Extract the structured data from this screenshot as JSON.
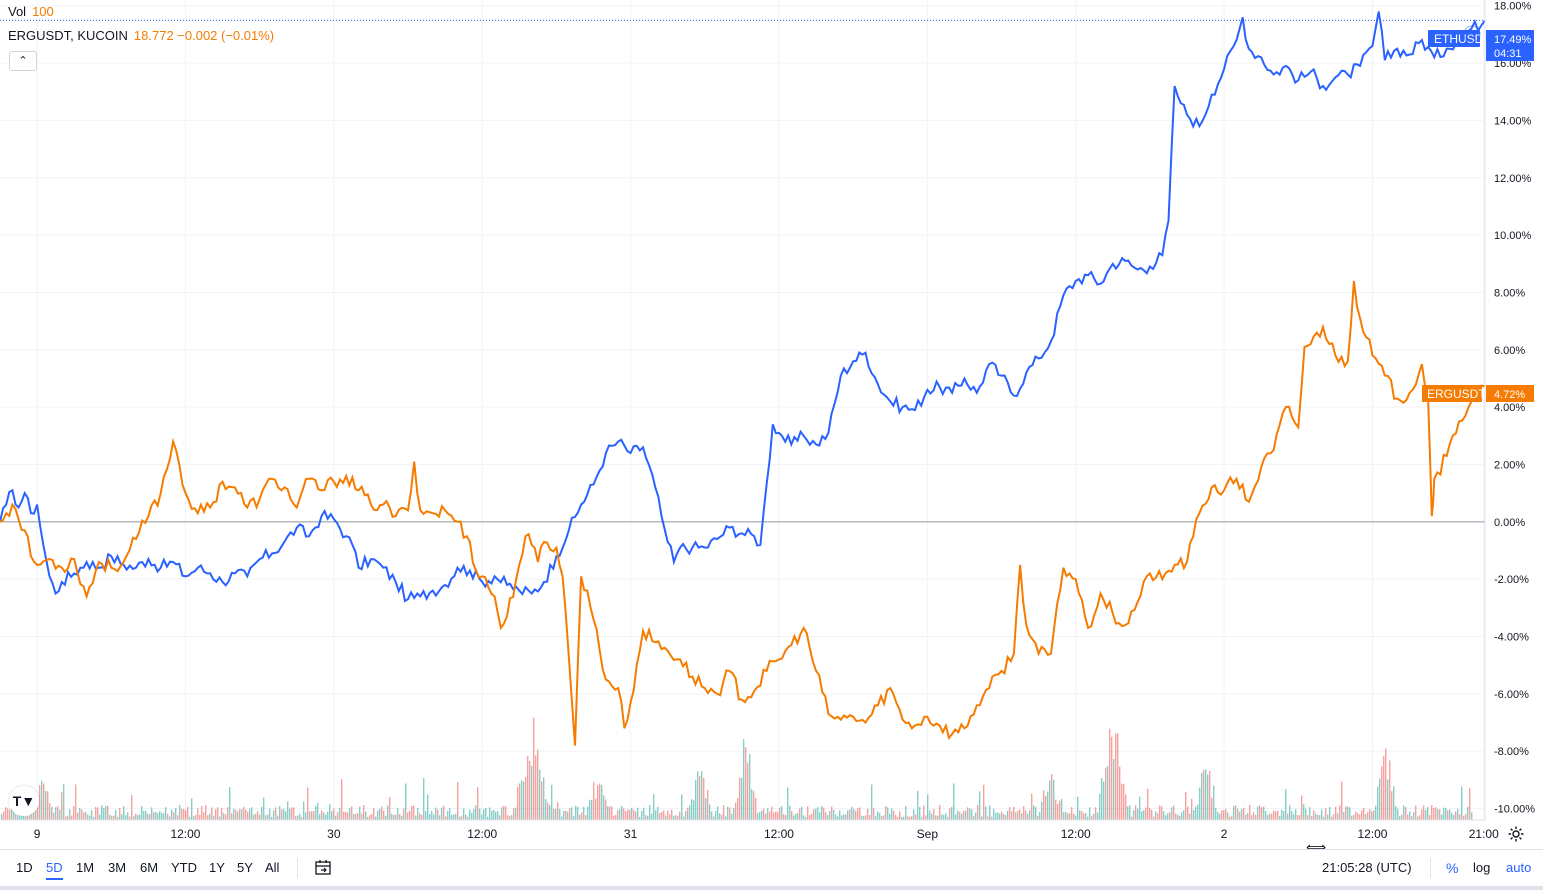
{
  "legend": {
    "vol_label": "Vol",
    "vol_value": "100",
    "erg_symbol": "ERGUSDT, KUCOIN",
    "erg_value": "18.772 −0.002 (−0.01%)",
    "collapse_glyph": "⌃"
  },
  "badges": {
    "eth": {
      "symbol": "ETHUSD",
      "value": "17.49%",
      "countdown": "04:31"
    },
    "erg": {
      "symbol": "ERGUSDT",
      "value": "4.72%"
    }
  },
  "toolbar": {
    "ranges": [
      "1D",
      "5D",
      "1M",
      "3M",
      "6M",
      "YTD",
      "1Y",
      "5Y",
      "All"
    ],
    "active_range": "5D",
    "clock": "21:05:28 (UTC)",
    "percent": "%",
    "log": "log",
    "auto": "auto"
  },
  "logo_text": "T▼",
  "colors": {
    "eth": "#2962ff",
    "erg": "#f57c00",
    "vol_up": "#26a69a",
    "vol_down": "#ef5350",
    "grid": "#f0f3fa",
    "zero": "#9598a1"
  },
  "chart_data": {
    "type": "line",
    "title": "",
    "y_axis": {
      "unit": "%",
      "ylim": [
        -10.4,
        18.2
      ],
      "ticks": [
        "18.00%",
        "16.00%",
        "14.00%",
        "12.00%",
        "10.00%",
        "8.00%",
        "6.00%",
        "4.00%",
        "2.00%",
        "0.00%",
        "-2.00%",
        "-4.00%",
        "-6.00%",
        "-8.00%",
        "-10.00%"
      ]
    },
    "x_axis": {
      "range_hours": [
        -3,
        117.1
      ],
      "ticks": [
        {
          "label": "9",
          "h": 0
        },
        {
          "label": "12:00",
          "h": 12
        },
        {
          "label": "30",
          "h": 24
        },
        {
          "label": "12:00",
          "h": 36
        },
        {
          "label": "31",
          "h": 48
        },
        {
          "label": "12:00",
          "h": 60
        },
        {
          "label": "Sep",
          "h": 72
        },
        {
          "label": "12:00",
          "h": 84
        },
        {
          "label": "2",
          "h": 96
        },
        {
          "label": "12:00",
          "h": 108
        },
        {
          "label": "21:00",
          "h": 117
        }
      ]
    },
    "series": [
      {
        "name": "ETHUSD",
        "points": [
          [
            -3,
            0
          ],
          [
            -2.5,
            0.6
          ],
          [
            -2,
            1.1
          ],
          [
            -1.5,
            0.5
          ],
          [
            -1,
            1.0
          ],
          [
            -0.5,
            0.3
          ],
          [
            0,
            0.6
          ],
          [
            0.5,
            -0.8
          ],
          [
            1,
            -1.9
          ],
          [
            1.5,
            -2.5
          ],
          [
            2,
            -2.1
          ],
          [
            3,
            -1.8
          ],
          [
            4,
            -1.4
          ],
          [
            5,
            -1.6
          ],
          [
            6,
            -1.2
          ],
          [
            7,
            -1.5
          ],
          [
            8,
            -1.6
          ],
          [
            9,
            -1.3
          ],
          [
            10,
            -1.6
          ],
          [
            11,
            -1.4
          ],
          [
            12,
            -1.9
          ],
          [
            13,
            -1.6
          ],
          [
            14,
            -1.8
          ],
          [
            15,
            -2.1
          ],
          [
            16,
            -1.8
          ],
          [
            17,
            -1.9
          ],
          [
            18,
            -1.3
          ],
          [
            19,
            -1.1
          ],
          [
            20,
            -0.7
          ],
          [
            21,
            -0.2
          ],
          [
            22,
            -0.5
          ],
          [
            23,
            0.2
          ],
          [
            24,
            0.1
          ],
          [
            25,
            -0.5
          ],
          [
            25.5,
            -0.8
          ],
          [
            26,
            -1.6
          ],
          [
            27,
            -1.3
          ],
          [
            28,
            -1.6
          ],
          [
            29,
            -2.1
          ],
          [
            30,
            -2.7
          ],
          [
            31,
            -2.6
          ],
          [
            32,
            -2.4
          ],
          [
            33,
            -2.2
          ],
          [
            34,
            -1.6
          ],
          [
            35,
            -1.7
          ],
          [
            36,
            -2.1
          ],
          [
            37,
            -1.9
          ],
          [
            38,
            -2.2
          ],
          [
            39,
            -2.4
          ],
          [
            40,
            -2.5
          ],
          [
            41,
            -2.1
          ],
          [
            42,
            -1.2
          ],
          [
            43,
            -0.3
          ],
          [
            44,
            0.6
          ],
          [
            45,
            1.3
          ],
          [
            46,
            2.4
          ],
          [
            47,
            2.8
          ],
          [
            48,
            2.4
          ],
          [
            49,
            2.6
          ],
          [
            50,
            1.2
          ],
          [
            50.5,
            0.2
          ],
          [
            51,
            -0.7
          ],
          [
            51.5,
            -1.4
          ],
          [
            52,
            -0.9
          ],
          [
            53,
            -0.9
          ],
          [
            54,
            -0.9
          ],
          [
            55,
            -0.6
          ],
          [
            56,
            -0.2
          ],
          [
            57,
            -0.4
          ],
          [
            58,
            -0.5
          ],
          [
            58.5,
            -0.8
          ],
          [
            59,
            1.3
          ],
          [
            59.5,
            3.4
          ],
          [
            60,
            3.1
          ],
          [
            61,
            2.7
          ],
          [
            62,
            3.0
          ],
          [
            63,
            2.7
          ],
          [
            64,
            3.1
          ],
          [
            65,
            5.1
          ],
          [
            66,
            5.6
          ],
          [
            67,
            5.9
          ],
          [
            68,
            4.8
          ],
          [
            69,
            4.2
          ],
          [
            70,
            4.0
          ],
          [
            71,
            3.9
          ],
          [
            72,
            4.6
          ],
          [
            73,
            4.7
          ],
          [
            74,
            4.5
          ],
          [
            75,
            5.0
          ],
          [
            76,
            4.5
          ],
          [
            77,
            5.5
          ],
          [
            78,
            5.1
          ],
          [
            79,
            4.4
          ],
          [
            80,
            5.2
          ],
          [
            81,
            5.7
          ],
          [
            82,
            6.3
          ],
          [
            83,
            7.9
          ],
          [
            84,
            8.4
          ],
          [
            85,
            8.6
          ],
          [
            86,
            8.3
          ],
          [
            87,
            9.0
          ],
          [
            88,
            9.1
          ],
          [
            89,
            8.8
          ],
          [
            90,
            8.9
          ],
          [
            91,
            9.3
          ],
          [
            91.5,
            10.5
          ],
          [
            92,
            15.2
          ],
          [
            92.5,
            14.6
          ],
          [
            93,
            14.2
          ],
          [
            94,
            13.8
          ],
          [
            95,
            14.9
          ],
          [
            96,
            15.8
          ],
          [
            97,
            16.8
          ],
          [
            97.5,
            17.6
          ],
          [
            98,
            16.5
          ],
          [
            99,
            16.2
          ],
          [
            100,
            15.6
          ],
          [
            101,
            15.9
          ],
          [
            102,
            15.4
          ],
          [
            103,
            15.7
          ],
          [
            104,
            15.2
          ],
          [
            105,
            15.5
          ],
          [
            106,
            15.6
          ],
          [
            107,
            15.9
          ],
          [
            108,
            16.6
          ],
          [
            108.5,
            17.8
          ],
          [
            109,
            16.1
          ],
          [
            110,
            16.5
          ],
          [
            111,
            16.3
          ],
          [
            112,
            16.8
          ],
          [
            113,
            16.2
          ],
          [
            114,
            16.5
          ],
          [
            115,
            16.9
          ],
          [
            116,
            17.2
          ],
          [
            117.1,
            17.49
          ]
        ]
      },
      {
        "name": "ERGUSDT",
        "points": [
          [
            -3,
            0
          ],
          [
            -2.5,
            0.3
          ],
          [
            -2,
            0.6
          ],
          [
            -1.5,
            0.1
          ],
          [
            -1,
            -0.3
          ],
          [
            -0.5,
            -1.2
          ],
          [
            0,
            -1.5
          ],
          [
            1,
            -1.3
          ],
          [
            2,
            -1.6
          ],
          [
            3,
            -1.3
          ],
          [
            4,
            -2.6
          ],
          [
            5,
            -1.4
          ],
          [
            6,
            -1.6
          ],
          [
            7,
            -1.4
          ],
          [
            8,
            -0.6
          ],
          [
            9,
            0.2
          ],
          [
            10,
            1.0
          ],
          [
            11,
            2.8
          ],
          [
            11.5,
            2.0
          ],
          [
            12,
            1.0
          ],
          [
            13,
            0.3
          ],
          [
            14,
            0.5
          ],
          [
            15,
            1.4
          ],
          [
            16,
            1.2
          ],
          [
            17,
            0.5
          ],
          [
            18,
            0.8
          ],
          [
            19,
            1.5
          ],
          [
            20,
            1.2
          ],
          [
            21,
            0.5
          ],
          [
            22,
            1.5
          ],
          [
            23,
            1.1
          ],
          [
            24,
            1.4
          ],
          [
            25,
            1.6
          ],
          [
            26,
            1.1
          ],
          [
            27,
            0.6
          ],
          [
            28,
            0.6
          ],
          [
            29,
            0.2
          ],
          [
            30,
            0.4
          ],
          [
            30.5,
            2.1
          ],
          [
            31,
            0.4
          ],
          [
            32,
            0.3
          ],
          [
            33,
            0.4
          ],
          [
            34,
            0.0
          ],
          [
            35,
            -0.7
          ],
          [
            35.5,
            -1.7
          ],
          [
            36,
            -1.9
          ],
          [
            37,
            -2.6
          ],
          [
            37.5,
            -3.7
          ],
          [
            38,
            -3.3
          ],
          [
            39,
            -1.5
          ],
          [
            39.5,
            -0.5
          ],
          [
            40,
            -0.8
          ],
          [
            40.5,
            -1.4
          ],
          [
            41,
            -0.7
          ],
          [
            42,
            -0.9
          ],
          [
            42.5,
            -1.9
          ],
          [
            43,
            -4.7
          ],
          [
            43.5,
            -7.8
          ],
          [
            44,
            -1.9
          ],
          [
            44.5,
            -2.4
          ],
          [
            45,
            -3.4
          ],
          [
            46,
            -5.5
          ],
          [
            47,
            -5.8
          ],
          [
            47.5,
            -7.2
          ],
          [
            48,
            -6.3
          ],
          [
            49,
            -3.8
          ],
          [
            50,
            -4.2
          ],
          [
            51,
            -4.5
          ],
          [
            52,
            -4.8
          ],
          [
            53,
            -5.4
          ],
          [
            54,
            -5.8
          ],
          [
            55,
            -6.0
          ],
          [
            56,
            -5.2
          ],
          [
            57,
            -6.2
          ],
          [
            58,
            -5.9
          ],
          [
            59,
            -5.2
          ],
          [
            60,
            -4.8
          ],
          [
            61,
            -4.3
          ],
          [
            62,
            -3.7
          ],
          [
            63,
            -5.2
          ],
          [
            64,
            -6.7
          ],
          [
            65,
            -6.9
          ],
          [
            66,
            -6.8
          ],
          [
            67,
            -7.0
          ],
          [
            68,
            -6.4
          ],
          [
            69,
            -5.8
          ],
          [
            70,
            -6.9
          ],
          [
            71,
            -7.1
          ],
          [
            72,
            -6.8
          ],
          [
            73,
            -7.1
          ],
          [
            74,
            -7.4
          ],
          [
            75,
            -7.2
          ],
          [
            76,
            -6.4
          ],
          [
            77,
            -5.8
          ],
          [
            78,
            -5.2
          ],
          [
            79,
            -4.6
          ],
          [
            79.5,
            -1.5
          ],
          [
            80,
            -3.6
          ],
          [
            81,
            -4.6
          ],
          [
            82,
            -4.6
          ],
          [
            83,
            -1.6
          ],
          [
            84,
            -2.0
          ],
          [
            85,
            -3.7
          ],
          [
            86,
            -2.5
          ],
          [
            87,
            -3.2
          ],
          [
            88,
            -3.6
          ],
          [
            89,
            -2.8
          ],
          [
            90,
            -1.8
          ],
          [
            91,
            -2.0
          ],
          [
            92,
            -1.5
          ],
          [
            93,
            -1.4
          ],
          [
            94,
            0.3
          ],
          [
            95,
            1.2
          ],
          [
            96,
            1.1
          ],
          [
            97,
            1.5
          ],
          [
            98,
            0.7
          ],
          [
            99,
            1.9
          ],
          [
            100,
            2.5
          ],
          [
            101,
            4.0
          ],
          [
            102,
            3.3
          ],
          [
            102.5,
            6.1
          ],
          [
            103,
            6.2
          ],
          [
            104,
            6.8
          ],
          [
            105,
            5.8
          ],
          [
            106,
            5.6
          ],
          [
            106.5,
            8.4
          ],
          [
            107,
            7.1
          ],
          [
            108,
            5.8
          ],
          [
            109,
            5.1
          ],
          [
            110,
            4.3
          ],
          [
            111,
            4.5
          ],
          [
            112,
            5.5
          ],
          [
            112.5,
            4.3
          ],
          [
            112.8,
            0.2
          ],
          [
            113,
            1.5
          ],
          [
            114,
            2.3
          ],
          [
            115,
            3.5
          ],
          [
            116,
            4.2
          ],
          [
            117.1,
            4.72
          ]
        ]
      }
    ]
  }
}
